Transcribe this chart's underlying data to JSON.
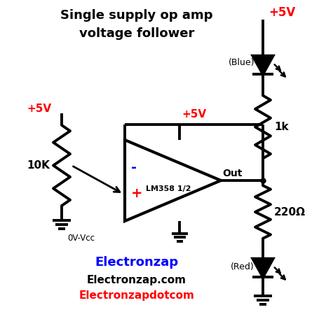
{
  "title_line1": "Single supply op amp",
  "title_line2": "voltage follower",
  "bg_color": "#FFFFFF",
  "title_color": "#000000",
  "red_color": "#FF0000",
  "blue_color": "#0000FF",
  "black_color": "#000000",
  "label_5v_top": "+5V",
  "label_blue": "(Blue)",
  "label_1k": "1k",
  "label_220": "220Ω",
  "label_red": "(Red)",
  "label_5v_left": "+5V",
  "label_10k": "10K",
  "label_5v_opamp": "+5V",
  "label_out": "Out",
  "label_lm358": "LM358 1/2",
  "label_0v": "0V-Vcc",
  "footer1": "Electronzap",
  "footer2": "Electronzap.com",
  "footer3": "Electronzapdotcom",
  "footer1_color": "#0000FF",
  "footer2_color": "#000000",
  "footer3_color": "#FF0000"
}
